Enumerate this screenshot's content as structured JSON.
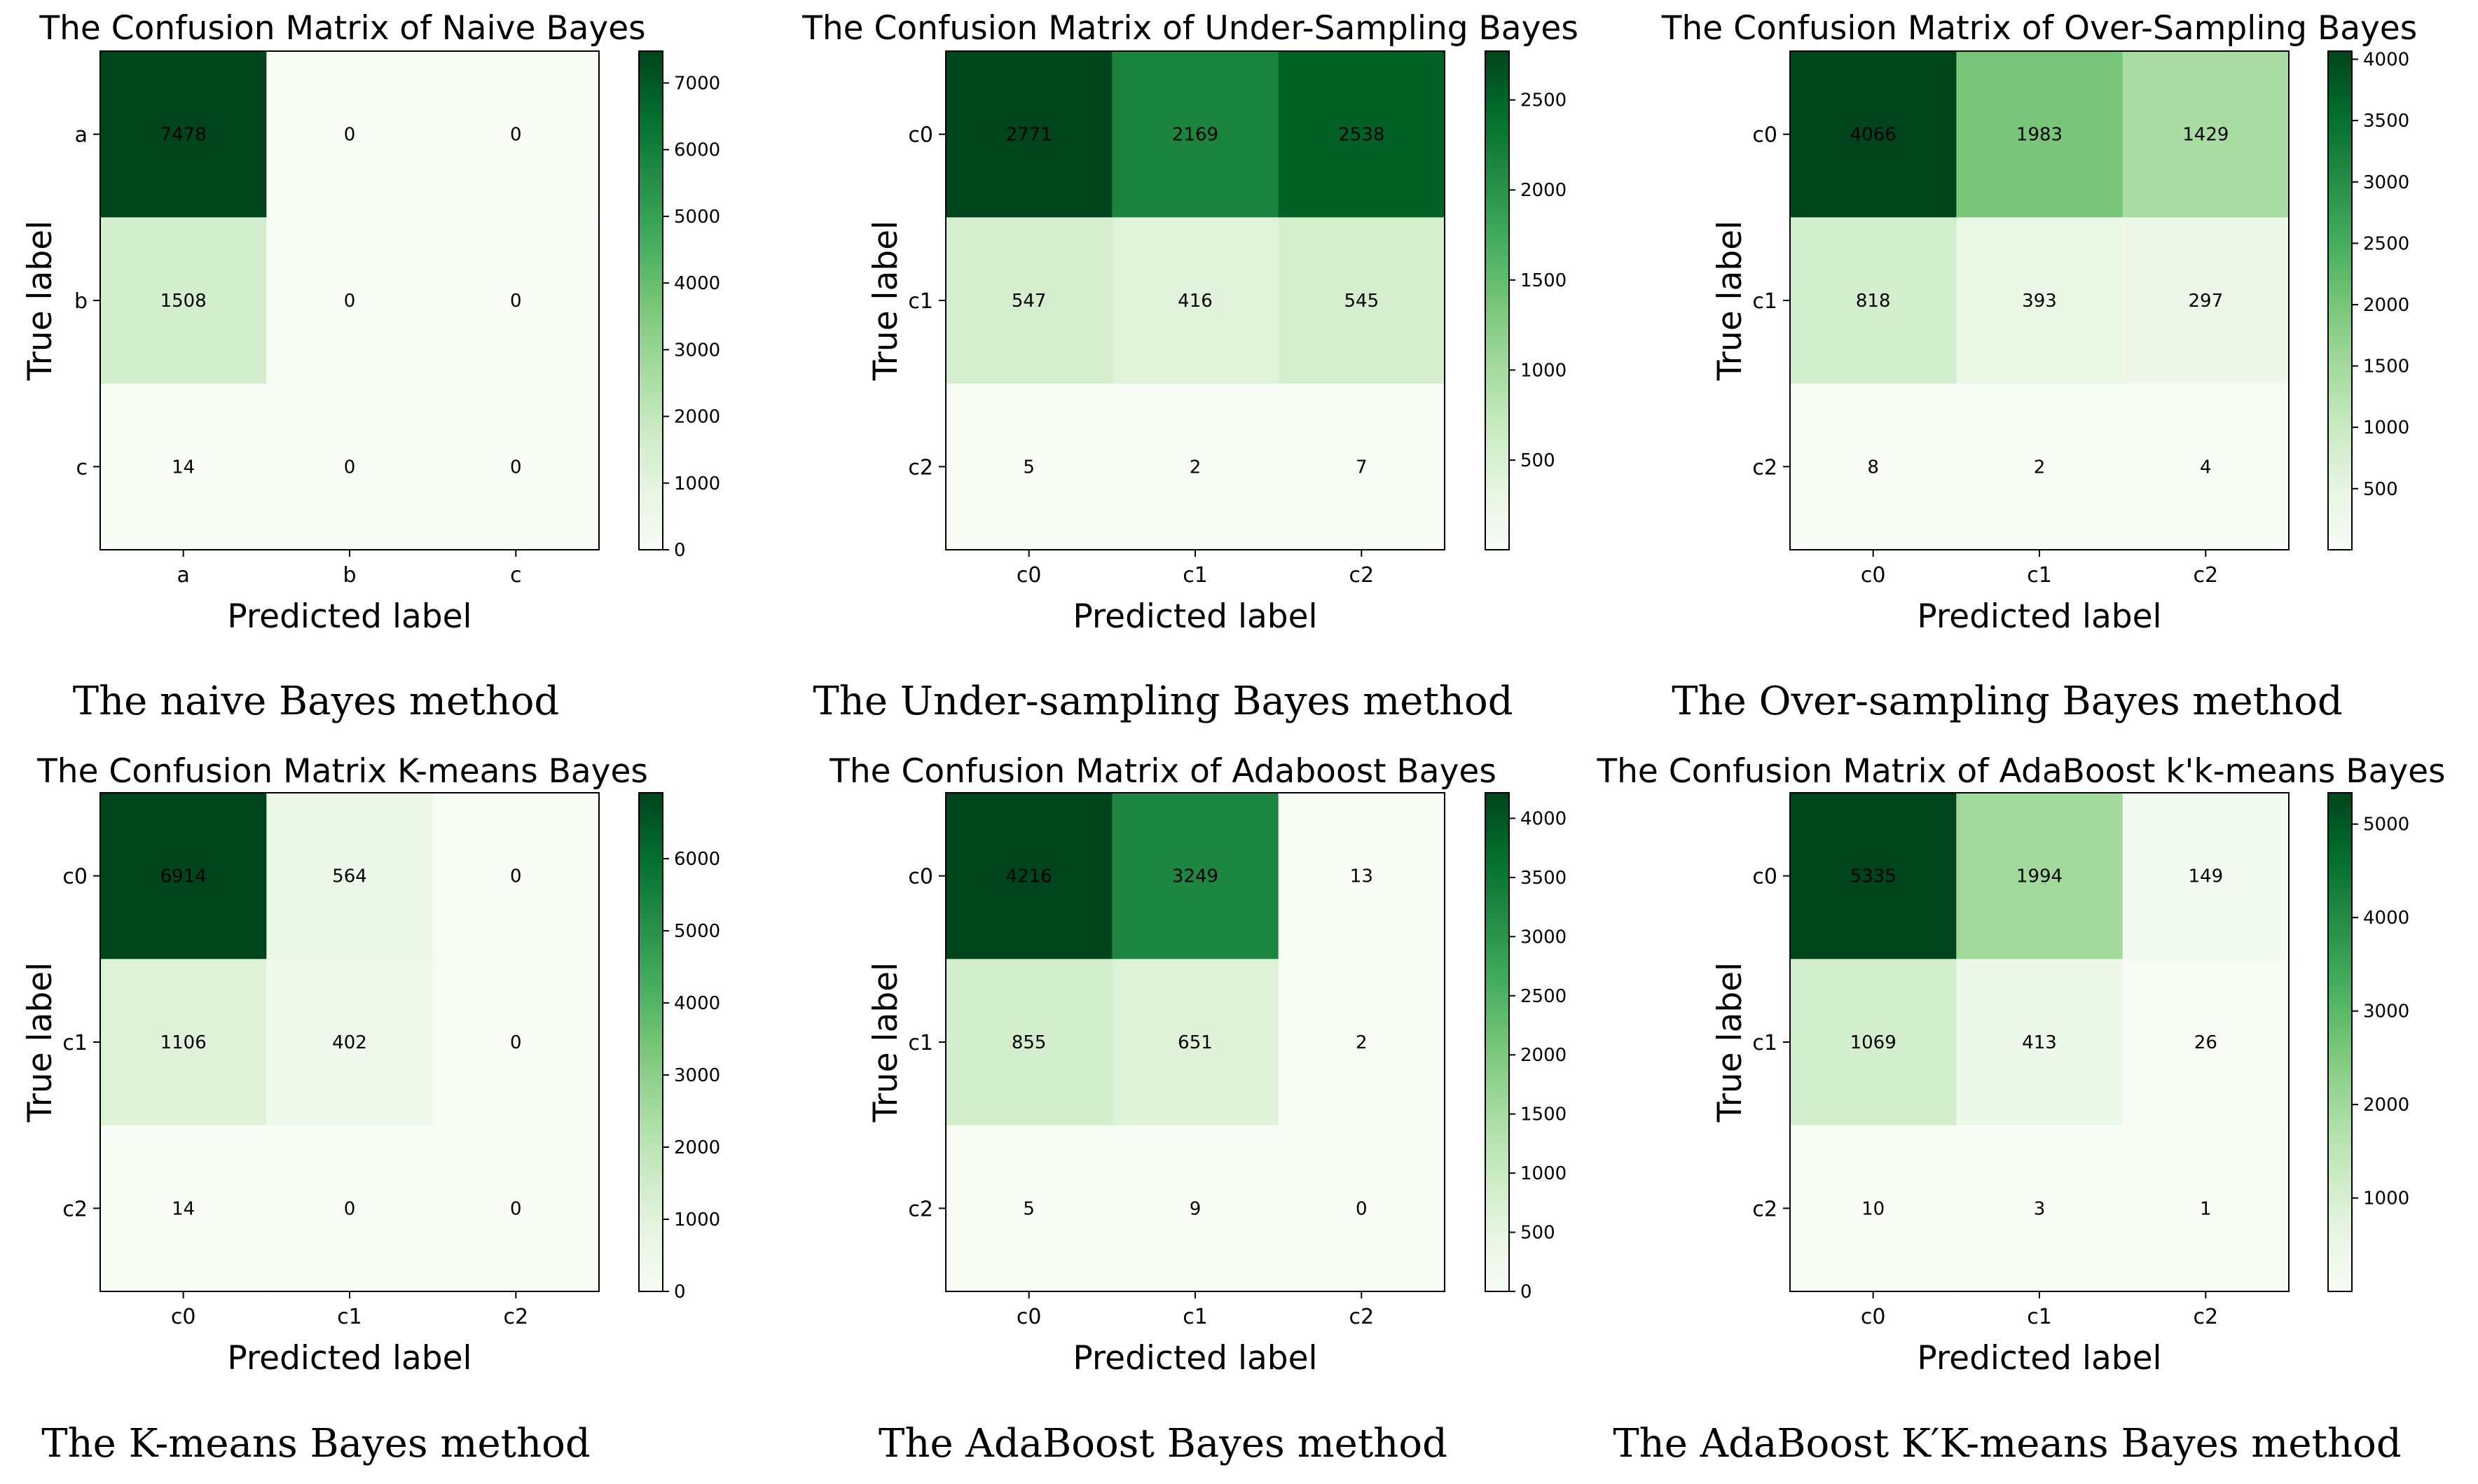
{
  "chart_data": [
    {
      "type": "heatmap",
      "title": "The Confusion Matrix of Naive Bayes",
      "xlabel": "Predicted label",
      "ylabel": "True label",
      "x_categories": [
        "a",
        "b",
        "c"
      ],
      "y_categories": [
        "a",
        "b",
        "c"
      ],
      "matrix": [
        [
          7478,
          0,
          0
        ],
        [
          1508,
          0,
          0
        ],
        [
          14,
          0,
          0
        ]
      ],
      "colorbar_ticks": [
        "0",
        "1000",
        "2000",
        "3000",
        "4000",
        "5000",
        "6000",
        "7000"
      ],
      "colorbar_range": [
        0,
        7478
      ],
      "caption": "The naive Bayes method"
    },
    {
      "type": "heatmap",
      "title": "The Confusion Matrix of Under-Sampling Bayes",
      "xlabel": "Predicted label",
      "ylabel": "True label",
      "x_categories": [
        "c0",
        "c1",
        "c2"
      ],
      "y_categories": [
        "c0",
        "c1",
        "c2"
      ],
      "matrix": [
        [
          2771,
          2169,
          2538
        ],
        [
          547,
          416,
          545
        ],
        [
          5,
          2,
          7
        ]
      ],
      "colorbar_ticks": [
        "500",
        "1000",
        "1500",
        "2000",
        "2500"
      ],
      "colorbar_range": [
        2,
        2771
      ],
      "caption": "The Under-sampling Bayes method"
    },
    {
      "type": "heatmap",
      "title": "The Confusion Matrix of Over-Sampling Bayes",
      "xlabel": "Predicted label",
      "ylabel": "True label",
      "x_categories": [
        "c0",
        "c1",
        "c2"
      ],
      "y_categories": [
        "c0",
        "c1",
        "c2"
      ],
      "matrix": [
        [
          4066,
          1983,
          1429
        ],
        [
          818,
          393,
          297
        ],
        [
          8,
          2,
          4
        ]
      ],
      "colorbar_ticks": [
        "500",
        "1000",
        "1500",
        "2000",
        "2500",
        "3000",
        "3500",
        "4000"
      ],
      "colorbar_range": [
        2,
        4066
      ],
      "caption": "The Over-sampling Bayes method"
    },
    {
      "type": "heatmap",
      "title": "The Confusion Matrix K-means Bayes",
      "xlabel": "Predicted label",
      "ylabel": "True label",
      "x_categories": [
        "c0",
        "c1",
        "c2"
      ],
      "y_categories": [
        "c0",
        "c1",
        "c2"
      ],
      "matrix": [
        [
          6914,
          564,
          0
        ],
        [
          1106,
          402,
          0
        ],
        [
          14,
          0,
          0
        ]
      ],
      "colorbar_ticks": [
        "0",
        "1000",
        "2000",
        "3000",
        "4000",
        "5000",
        "6000"
      ],
      "colorbar_range": [
        0,
        6914
      ],
      "caption": "The K-means Bayes method"
    },
    {
      "type": "heatmap",
      "title": "The Confusion Matrix of  Adaboost Bayes",
      "xlabel": "Predicted label",
      "ylabel": "True label",
      "x_categories": [
        "c0",
        "c1",
        "c2"
      ],
      "y_categories": [
        "c0",
        "c1",
        "c2"
      ],
      "matrix": [
        [
          4216,
          3249,
          13
        ],
        [
          855,
          651,
          2
        ],
        [
          5,
          9,
          0
        ]
      ],
      "colorbar_ticks": [
        "0",
        "500",
        "1000",
        "1500",
        "2000",
        "2500",
        "3000",
        "3500",
        "4000"
      ],
      "colorbar_range": [
        0,
        4216
      ],
      "caption": "The AdaBoost Bayes method"
    },
    {
      "type": "heatmap",
      "title": "The Confusion Matrix of AdaBoost k'k-means Bayes",
      "xlabel": "Predicted label",
      "ylabel": "True label",
      "x_categories": [
        "c0",
        "c1",
        "c2"
      ],
      "y_categories": [
        "c0",
        "c1",
        "c2"
      ],
      "matrix": [
        [
          5335,
          1994,
          149
        ],
        [
          1069,
          413,
          26
        ],
        [
          10,
          3,
          1
        ]
      ],
      "colorbar_ticks": [
        "1000",
        "2000",
        "3000",
        "4000",
        "5000"
      ],
      "colorbar_range": [
        1,
        5335
      ],
      "caption": "The AdaBoost K′K-means Bayes method"
    }
  ]
}
